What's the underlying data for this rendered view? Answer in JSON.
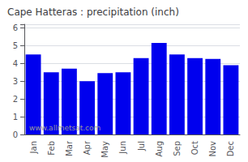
{
  "chart_data": {
    "type": "bar",
    "title": "Cape Hatteras : precipitation (inch)",
    "categories": [
      "Jan",
      "Feb",
      "Mar",
      "Apr",
      "May",
      "Jun",
      "Jul",
      "Aug",
      "Sep",
      "Oct",
      "Nov",
      "Dec"
    ],
    "values": [
      4.5,
      3.5,
      3.7,
      3.0,
      3.45,
      3.5,
      4.3,
      5.15,
      4.5,
      4.3,
      4.25,
      3.9
    ],
    "color": "#0000EE",
    "ylim": [
      0,
      6.2
    ],
    "yticks": [
      0,
      1,
      2,
      3,
      4,
      5,
      6
    ],
    "grid": true,
    "annotation": "www.allmetsat.com"
  }
}
